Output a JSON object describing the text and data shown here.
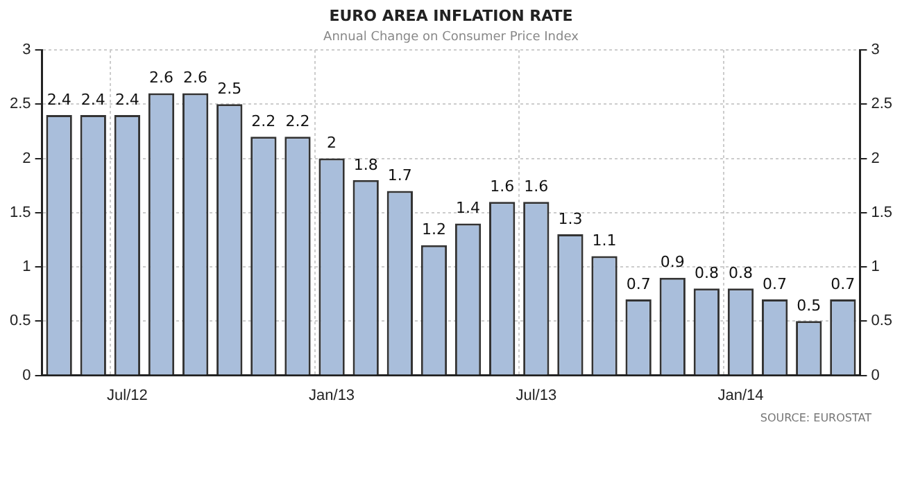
{
  "chart_data": {
    "type": "bar",
    "title": "EURO AREA INFLATION RATE",
    "subtitle": "Annual Change on Consumer Price Index",
    "categories": [
      null,
      null,
      "Jul/12",
      null,
      null,
      null,
      null,
      null,
      "Jan/13",
      null,
      null,
      null,
      null,
      null,
      "Jul/13",
      null,
      null,
      null,
      null,
      null,
      "Jan/14",
      null,
      null,
      null
    ],
    "values": [
      2.4,
      2.4,
      2.4,
      2.6,
      2.6,
      2.5,
      2.2,
      2.2,
      2,
      1.8,
      1.7,
      1.2,
      1.4,
      1.6,
      1.6,
      1.3,
      1.1,
      0.7,
      0.9,
      0.8,
      0.8,
      0.7,
      0.5,
      0.7
    ],
    "color": "#a9bedb",
    "ylim": [
      0,
      3
    ],
    "yticks": [
      0,
      0.5,
      1,
      1.5,
      2,
      2.5,
      3
    ],
    "y2lim": [
      0,
      3
    ],
    "y2ticks": [
      0,
      0.5,
      1,
      1.5,
      2,
      2.5,
      3
    ],
    "grid": true,
    "data_labels": true,
    "annotations": [
      "SOURCE: EUROSTAT"
    ]
  }
}
